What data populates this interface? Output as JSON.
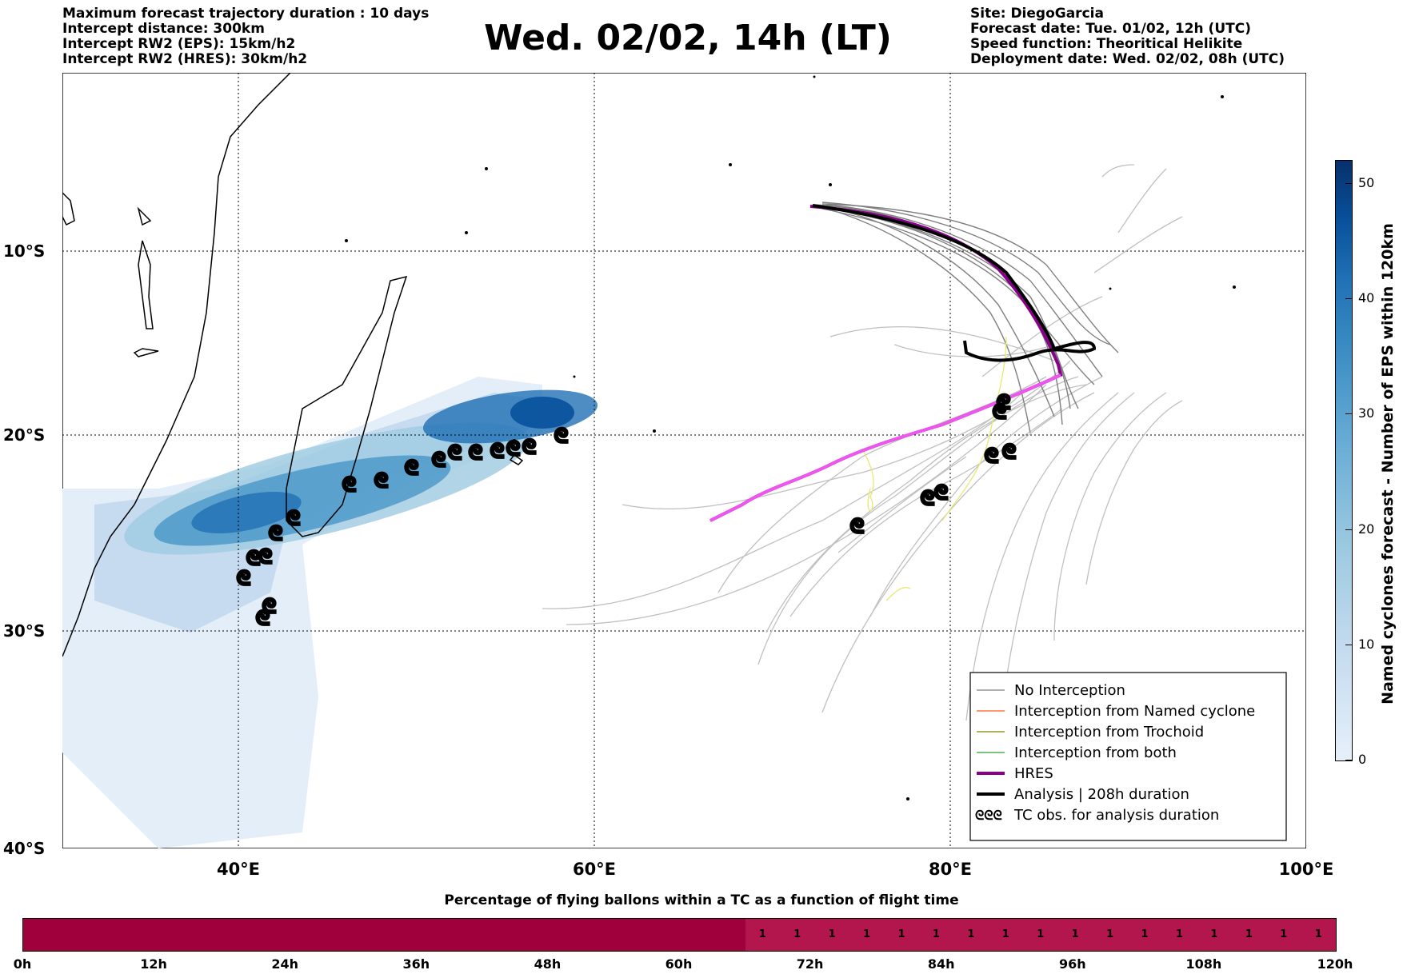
{
  "header": {
    "left": [
      "Maximum forecast trajectory duration : 10 days",
      "Intercept distance: 300km",
      "Intercept RW2 (EPS):  15km/h2",
      "Intercept RW2 (HRES): 30km/h2"
    ],
    "right": [
      "Site: DiegoGarcia",
      "Forecast date: Tue. 01/02, 12h (UTC)",
      "Speed function: Theoritical Helikite",
      "Deployment date: Wed. 02/02, 08h (UTC)"
    ],
    "title": "Wed. 02/02, 14h (LT)"
  },
  "map": {
    "lat_labels": [
      "10°S",
      "20°S",
      "30°S",
      "40°S"
    ],
    "lon_labels": [
      "40°E",
      "60°E",
      "80°E",
      "100°E"
    ],
    "legend": [
      {
        "label": "No Interception",
        "color": "#7f7f7f"
      },
      {
        "label": "Interception from Named cyclone",
        "color": "#ff5a1e"
      },
      {
        "label": "Interception from Trochoid",
        "color": "#808000"
      },
      {
        "label": "Interception from both",
        "color": "#2ca02c"
      },
      {
        "label": "HRES",
        "color": "#8b008b"
      },
      {
        "label": "Analysis | 208h duration",
        "color": "#000000"
      },
      {
        "label": "TC obs. for analysis duration",
        "color": "#000000"
      }
    ],
    "legend_icon": "ᘓᘓᘓ"
  },
  "colorbar": {
    "label": "Named cyclones forecast - Number of EPS within 120km",
    "ticks": [
      "0",
      "10",
      "20",
      "30",
      "40",
      "50"
    ]
  },
  "percentage": {
    "title": "Percentage of flying ballons within a TC as a function of flight time",
    "time_labels": [
      "0h",
      "12h",
      "24h",
      "36h",
      "48h",
      "60h",
      "72h",
      "84h",
      "96h",
      "108h",
      "120h"
    ],
    "cell_values": [
      "1",
      "1",
      "1",
      "1",
      "1",
      "1",
      "1",
      "1",
      "1",
      "1",
      "1",
      "1",
      "1",
      "1",
      "1",
      "1",
      "1"
    ],
    "filled_fraction": 0.55
  }
}
